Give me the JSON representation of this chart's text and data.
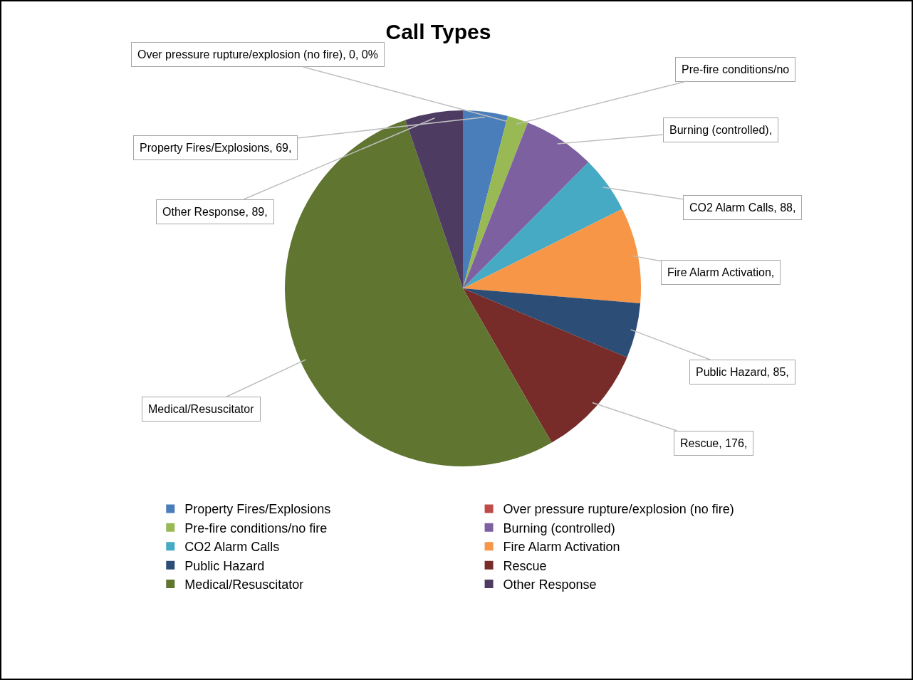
{
  "chart_data": {
    "type": "pie",
    "title": "Call Types",
    "categories": [
      "Property Fires/Explosions",
      "Over pressure rupture/explosion (no fire)",
      "Pre-fire conditions/no fire",
      "Burning (controlled)",
      "CO2 Alarm Calls",
      "Fire Alarm Activation",
      "Public Hazard",
      "Rescue",
      "Medical/Resuscitator",
      "Other Response"
    ],
    "values": [
      69,
      0,
      32,
      111,
      88,
      148,
      85,
      176,
      903,
      89
    ],
    "colors": [
      "#4a7ebb",
      "#be4b48",
      "#98b954",
      "#7d60a0",
      "#46aac5",
      "#f79646",
      "#2c4d75",
      "#772c2a",
      "#5f7530",
      "#4d3b62"
    ],
    "value_labels": [
      "Property Fires/Explosions, 69,",
      "Over pressure rupture/explosion (no fire), 0, 0%",
      "Pre-fire conditions/no",
      "Burning (controlled),",
      "CO2 Alarm Calls, 88,",
      "Fire Alarm Activation,",
      "Public Hazard, 85,",
      "Rescue, 176,",
      "Medical/Resuscitator",
      "Other Response, 89,"
    ],
    "legend": "bottom"
  }
}
